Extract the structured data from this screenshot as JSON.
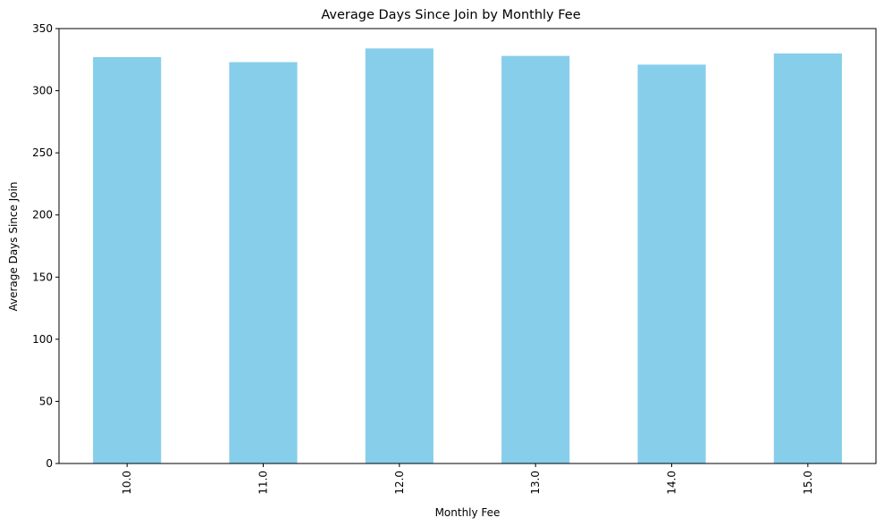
{
  "chart_data": {
    "type": "bar",
    "title": "Average Days Since Join by Monthly Fee",
    "xlabel": "Monthly Fee",
    "ylabel": "Average Days Since Join",
    "categories": [
      "10.0",
      "11.0",
      "12.0",
      "13.0",
      "14.0",
      "15.0"
    ],
    "values": [
      327,
      323,
      334,
      328,
      321,
      330
    ],
    "ylim": [
      0,
      350
    ],
    "yticks": [
      0,
      50,
      100,
      150,
      200,
      250,
      300,
      350
    ],
    "ytick_labels": [
      "0",
      "50",
      "100",
      "150",
      "200",
      "250",
      "300",
      "350"
    ],
    "xtick_rotation": "vertical",
    "bar_color": "#87CEEB",
    "grid": false,
    "legend": "none"
  }
}
